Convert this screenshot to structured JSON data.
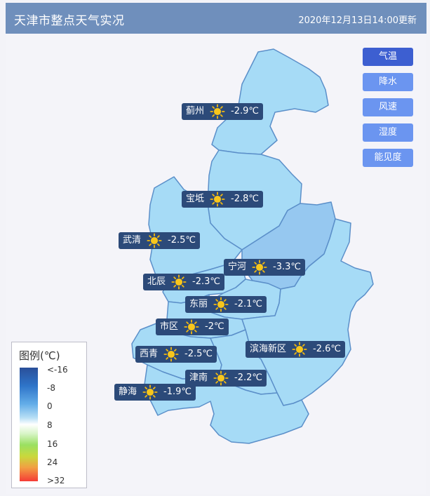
{
  "header": {
    "title": "天津市整点天气实况",
    "time": "2020年12月13日14:00更新"
  },
  "tabs": [
    {
      "label": "气温",
      "active": true
    },
    {
      "label": "降水",
      "active": false
    },
    {
      "label": "风速",
      "active": false
    },
    {
      "label": "湿度",
      "active": false
    },
    {
      "label": "能见度",
      "active": false
    }
  ],
  "stations": [
    {
      "name": "蓟州",
      "temp": "-2.9℃",
      "icon": "sun-icon"
    },
    {
      "name": "宝坻",
      "temp": "-2.8℃",
      "icon": "sun-icon"
    },
    {
      "name": "武清",
      "temp": "-2.5℃",
      "icon": "sun-icon"
    },
    {
      "name": "宁河",
      "temp": "-3.3℃",
      "icon": "sun-icon"
    },
    {
      "name": "北辰",
      "temp": "-2.3℃",
      "icon": "sun-icon"
    },
    {
      "name": "东丽",
      "temp": "-2.1℃",
      "icon": "sun-icon"
    },
    {
      "name": "市区",
      "temp": "-2℃",
      "icon": "sun-icon"
    },
    {
      "name": "西青",
      "temp": "-2.5℃",
      "icon": "sun-icon"
    },
    {
      "name": "滨海新区",
      "temp": "-2.6℃",
      "icon": "sun-icon"
    },
    {
      "name": "津南",
      "temp": "-2.2℃",
      "icon": "sun-icon"
    },
    {
      "name": "静海",
      "temp": "-1.9℃",
      "icon": "sun-icon"
    }
  ],
  "legend": {
    "title": "图例(℃)",
    "ticks": [
      "<-16",
      "-8",
      "0",
      "8",
      "16",
      "24",
      ">32"
    ]
  },
  "colors": {
    "header_bg": "#6f8fbc",
    "region_fill": "#a6dbf6",
    "region_fill_dark": "#96c8f0",
    "border": "#5b8fc9",
    "label_bg": "#2c4a79",
    "tab_bg": "#6b95f0",
    "tab_active_bg": "#3d5fd1"
  }
}
